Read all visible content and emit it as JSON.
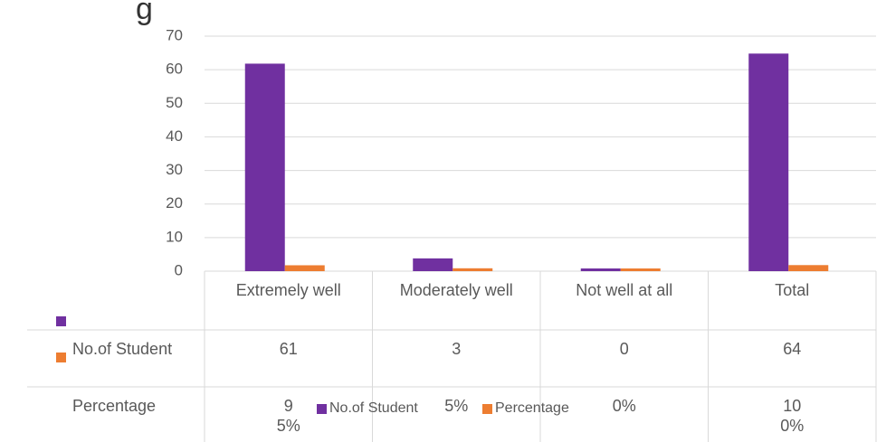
{
  "chart_data": {
    "type": "bar",
    "title": "g",
    "categories": [
      "Extremely well",
      "Moderately well",
      "Not well at all",
      "Total"
    ],
    "series": [
      {
        "name": "No.of Student",
        "color": "#7030a0",
        "values": [
          61,
          3,
          0,
          64
        ]
      },
      {
        "name": "Percentage",
        "color": "#ed7d31",
        "values": [
          0.95,
          0.05,
          0,
          1
        ],
        "value_labels": [
          "95%",
          "5%",
          "0%",
          "100%"
        ]
      }
    ],
    "ylim": [
      0,
      70
    ],
    "yticks": [
      0,
      10,
      20,
      30,
      40,
      50,
      60,
      70
    ],
    "grid": true,
    "data_table": true,
    "legend": "bottom"
  }
}
